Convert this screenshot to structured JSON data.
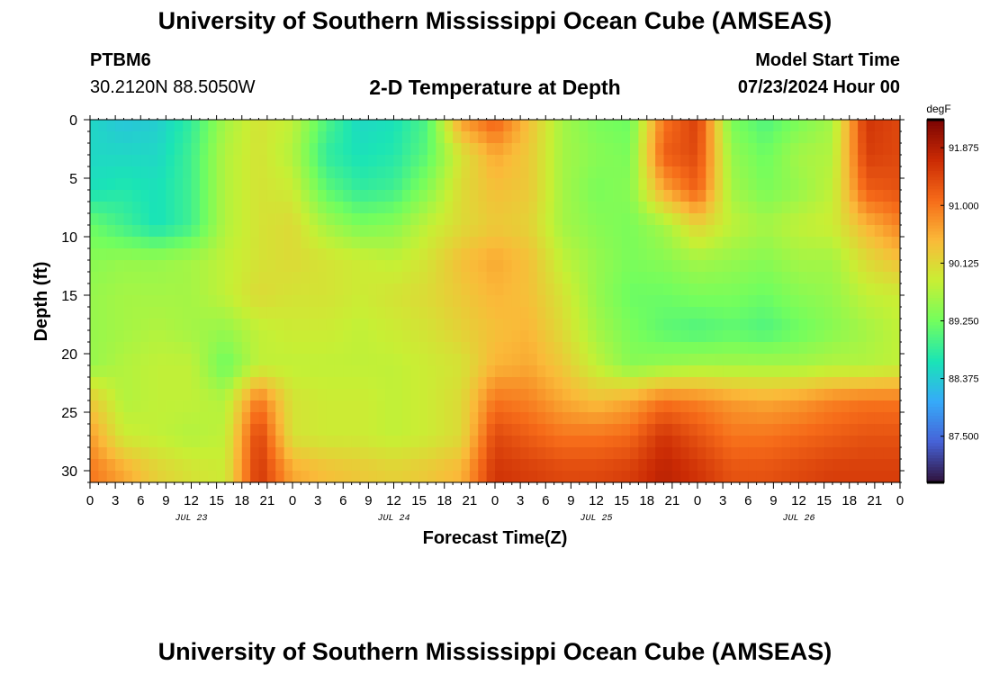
{
  "header": {
    "title": "University of Southern Mississippi Ocean Cube (AMSEAS)",
    "station_id": "PTBM6",
    "station_coords": "30.2120N  88.5050W",
    "plot_title": "2-D Temperature at Depth",
    "model_start_label": "Model Start Time",
    "model_start_value": "07/23/2024 Hour 00"
  },
  "footer": {
    "title": "University of Southern Mississippi Ocean Cube (AMSEAS)"
  },
  "chart_data": {
    "type": "heatmap",
    "xlabel": "Forecast Time(Z)",
    "ylabel": "Depth (ft)",
    "x_range_hours": [
      0,
      96
    ],
    "x_ticks": [
      "0",
      "3",
      "6",
      "9",
      "12",
      "15",
      "18",
      "21",
      "0",
      "3",
      "6",
      "9",
      "12",
      "15",
      "18",
      "21",
      "0",
      "3",
      "6",
      "9",
      "12",
      "15",
      "18",
      "21",
      "0",
      "3",
      "6",
      "9",
      "12",
      "15",
      "18",
      "21",
      "0"
    ],
    "day_labels": [
      {
        "label": "JUL 23",
        "hour": 12
      },
      {
        "label": "JUL 24",
        "hour": 36
      },
      {
        "label": "JUL 25",
        "hour": 60
      },
      {
        "label": "JUL 26",
        "hour": 84
      }
    ],
    "y_range": [
      0,
      31
    ],
    "y_ticks": [
      0,
      5,
      10,
      15,
      20,
      25,
      30
    ],
    "y_inverted": true,
    "colorbar": {
      "unit": "degF",
      "min": 86.8,
      "max": 92.3,
      "ticks": [
        "91.875",
        "91.000",
        "90.125",
        "89.250",
        "88.375",
        "87.500"
      ]
    },
    "colormap": [
      "#30123b",
      "#4662d7",
      "#36aaf9",
      "#1ae4b6",
      "#72fe5e",
      "#c8ef34",
      "#faba39",
      "#f66b19",
      "#ca2a04",
      "#7a0403"
    ],
    "depth_levels": [
      0,
      3,
      6,
      9,
      12,
      15,
      18,
      21,
      24,
      27,
      30
    ],
    "time_hours": [
      0,
      4,
      8,
      12,
      16,
      20,
      24,
      28,
      32,
      36,
      40,
      44,
      48,
      52,
      56,
      60,
      64,
      68,
      72,
      76,
      80,
      84,
      88,
      92,
      96
    ],
    "temperature_degF": [
      [
        88.5,
        88.3,
        88.4,
        88.8,
        89.6,
        90.0,
        89.8,
        89.0,
        88.5,
        88.6,
        89.0,
        90.7,
        91.2,
        90.4,
        89.6,
        89.3,
        89.2,
        91.0,
        91.5,
        89.3,
        89.0,
        89.3,
        89.6,
        91.6,
        91.4
      ],
      [
        88.5,
        88.5,
        88.5,
        88.9,
        89.7,
        90.0,
        89.7,
        88.8,
        88.6,
        88.7,
        89.1,
        90.0,
        90.6,
        90.3,
        89.6,
        89.4,
        89.3,
        91.2,
        91.4,
        89.5,
        89.2,
        89.6,
        89.7,
        91.5,
        91.4
      ],
      [
        88.6,
        88.7,
        88.6,
        88.9,
        89.7,
        90.0,
        89.9,
        89.1,
        88.8,
        88.9,
        89.4,
        90.1,
        90.4,
        90.3,
        89.6,
        89.3,
        89.4,
        90.6,
        91.2,
        89.6,
        89.3,
        89.5,
        89.8,
        91.2,
        91.3
      ],
      [
        89.2,
        88.9,
        88.6,
        88.9,
        89.7,
        90.0,
        90.1,
        89.6,
        89.3,
        89.4,
        89.8,
        90.1,
        90.3,
        90.2,
        89.6,
        89.4,
        89.3,
        89.6,
        90.2,
        89.8,
        89.6,
        89.8,
        89.9,
        90.5,
        90.9
      ],
      [
        89.4,
        89.5,
        89.5,
        89.6,
        89.8,
        90.0,
        90.1,
        90.0,
        89.9,
        89.8,
        90.0,
        90.4,
        90.6,
        90.4,
        89.8,
        89.5,
        89.3,
        89.4,
        89.6,
        89.5,
        89.4,
        89.6,
        89.6,
        90.1,
        90.4
      ],
      [
        89.5,
        89.6,
        89.6,
        89.6,
        89.8,
        90.1,
        90.0,
        90.0,
        89.9,
        90.0,
        90.1,
        90.3,
        90.5,
        90.4,
        90.0,
        89.5,
        89.2,
        89.2,
        89.3,
        89.3,
        89.2,
        89.4,
        89.5,
        89.8,
        89.9
      ],
      [
        89.5,
        89.6,
        89.7,
        89.6,
        89.5,
        89.8,
        89.9,
        89.9,
        89.8,
        89.9,
        90.0,
        90.2,
        90.4,
        90.5,
        90.1,
        89.6,
        89.3,
        89.1,
        89.0,
        89.1,
        89.0,
        89.2,
        89.4,
        89.6,
        89.8
      ],
      [
        89.5,
        89.7,
        89.8,
        89.8,
        89.2,
        89.8,
        89.8,
        89.8,
        89.8,
        89.8,
        89.9,
        90.0,
        90.5,
        90.6,
        90.3,
        89.8,
        89.4,
        89.5,
        89.6,
        89.6,
        89.6,
        89.6,
        89.7,
        89.7,
        89.8
      ],
      [
        90.3,
        89.7,
        89.8,
        89.8,
        89.7,
        91.0,
        90.0,
        89.9,
        89.9,
        89.8,
        89.9,
        90.1,
        91.0,
        90.9,
        90.6,
        90.4,
        90.6,
        91.0,
        90.9,
        90.7,
        90.6,
        90.7,
        90.9,
        91.0,
        91.0
      ],
      [
        90.7,
        89.9,
        89.8,
        89.7,
        89.8,
        91.5,
        90.0,
        89.9,
        89.9,
        89.8,
        89.9,
        90.1,
        91.4,
        91.2,
        91.0,
        91.0,
        91.1,
        91.6,
        91.3,
        91.0,
        91.0,
        91.1,
        91.2,
        91.3,
        91.3
      ],
      [
        91.0,
        90.6,
        90.2,
        90.0,
        89.9,
        91.6,
        90.6,
        90.4,
        90.3,
        90.2,
        90.3,
        90.5,
        91.6,
        91.5,
        91.4,
        91.4,
        91.5,
        91.8,
        91.6,
        91.3,
        91.3,
        91.4,
        91.5,
        91.5,
        91.5
      ]
    ]
  }
}
